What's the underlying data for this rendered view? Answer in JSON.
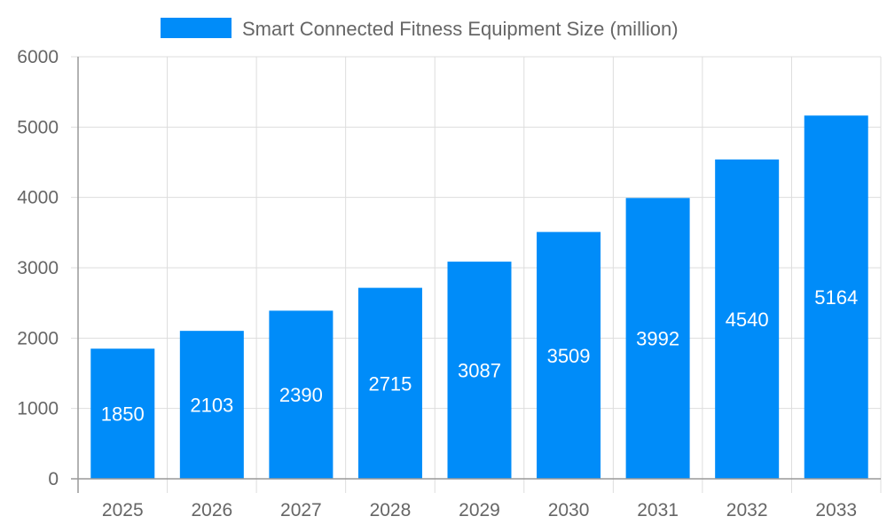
{
  "chart_data": {
    "type": "bar",
    "categories": [
      "2025",
      "2026",
      "2027",
      "2028",
      "2029",
      "2030",
      "2031",
      "2032",
      "2033"
    ],
    "series": [
      {
        "name": "Smart Connected Fitness Equipment Size (million)",
        "values": [
          1850,
          2103,
          2390,
          2715,
          3087,
          3509,
          3992,
          4540,
          5164
        ],
        "color": "#008cf9"
      }
    ],
    "yticks": [
      0,
      1000,
      2000,
      3000,
      4000,
      5000,
      6000
    ],
    "ylim": [
      0,
      6000
    ],
    "grid": true,
    "legend": "top",
    "data_labels": true
  }
}
